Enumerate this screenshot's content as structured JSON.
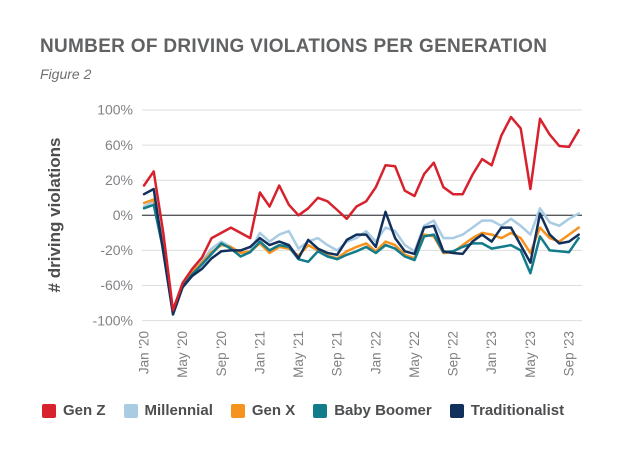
{
  "header": {
    "title": "NUMBER OF DRIVING VIOLATIONS PER GENERATION",
    "figure_label": "Figure 2"
  },
  "chart_data": {
    "type": "line",
    "title": "NUMBER OF DRIVING VIOLATIONS PER GENERATION",
    "subtitle": "Figure 2",
    "xlabel": "",
    "ylabel": "# driving violations",
    "unit": "%",
    "grid": "horizontal",
    "legend_position": "bottom",
    "y_scale": "nonlinear-even-tick-spacing",
    "y_tick_labels": [
      "100%",
      "60%",
      "20%",
      "0%",
      "-20%",
      "-60%",
      "-100%"
    ],
    "y_tick_values": [
      100,
      60,
      20,
      0,
      -20,
      -60,
      -100
    ],
    "x_tick_labels": [
      "Jan '20",
      "May '20",
      "Sep '20",
      "Jan '21",
      "May '21",
      "Sep '21",
      "Jan '22",
      "May '22",
      "Sep '22",
      "Jan '23",
      "May '23",
      "Sep '23"
    ],
    "x_tick_month_indices": [
      0,
      4,
      8,
      12,
      16,
      20,
      24,
      28,
      32,
      36,
      40,
      44
    ],
    "x_months": [
      "Jan '20",
      "Feb '20",
      "Mar '20",
      "Apr '20",
      "May '20",
      "Jun '20",
      "Jul '20",
      "Aug '20",
      "Sep '20",
      "Oct '20",
      "Nov '20",
      "Dec '20",
      "Jan '21",
      "Feb '21",
      "Mar '21",
      "Apr '21",
      "May '21",
      "Jun '21",
      "Jul '21",
      "Aug '21",
      "Sep '21",
      "Oct '21",
      "Nov '21",
      "Dec '21",
      "Jan '22",
      "Feb '22",
      "Mar '22",
      "Apr '22",
      "May '22",
      "Jun '22",
      "Jul '22",
      "Aug '22",
      "Sep '22",
      "Oct '22",
      "Nov '22",
      "Dec '22",
      "Jan '23",
      "Feb '23",
      "Mar '23",
      "Apr '23",
      "May '23",
      "Jun '23",
      "Jul '23",
      "Aug '23",
      "Sep '23",
      "Oct '23"
    ],
    "series": [
      {
        "name": "Gen Z",
        "color": "#d7222d",
        "values": [
          17,
          30,
          -10,
          -88,
          -57,
          -41,
          -28,
          -13,
          -10,
          -7,
          -10,
          -13,
          13,
          5,
          17,
          6,
          0,
          4,
          10,
          8,
          3,
          -2,
          5,
          8,
          16,
          37,
          36,
          14,
          11,
          27,
          40,
          16,
          12,
          12,
          26,
          44,
          37,
          71,
          92,
          79,
          15,
          90,
          72,
          59,
          58,
          77
        ]
      },
      {
        "name": "Millennial",
        "color": "#a9cce3",
        "values": [
          5,
          8,
          -15,
          -89,
          -58,
          -44,
          -32,
          -19,
          -15,
          -18,
          -23,
          -21,
          -10,
          -15,
          -11,
          -9,
          -19,
          -15,
          -13,
          -17,
          -20,
          -15,
          -13,
          -9,
          -15,
          -7,
          -9,
          -17,
          -21,
          -6,
          -3,
          -13,
          -13,
          -11,
          -7,
          -3,
          -3,
          -6,
          -2,
          -6,
          -11,
          4,
          -4,
          -6,
          -2,
          1
        ]
      },
      {
        "name": "Gen X",
        "color": "#f6921e",
        "values": [
          7,
          9,
          -18,
          -89,
          -60,
          -45,
          -34,
          -22,
          -17,
          -18,
          -23,
          -21,
          -16,
          -23,
          -18,
          -19,
          -26,
          -17,
          -20,
          -26,
          -29,
          -21,
          -18,
          -16,
          -21,
          -15,
          -17,
          -25,
          -29,
          -11,
          -12,
          -23,
          -22,
          -17,
          -13,
          -10,
          -11,
          -13,
          -10,
          -13,
          -23,
          -7,
          -13,
          -15,
          -11,
          -7
        ]
      },
      {
        "name": "Baby Boomer",
        "color": "#127c8b",
        "values": [
          4,
          6,
          -20,
          -90,
          -61,
          -47,
          -36,
          -24,
          -16,
          -19,
          -27,
          -22,
          -15,
          -20,
          -17,
          -18,
          -30,
          -33,
          -21,
          -27,
          -30,
          -25,
          -21,
          -18,
          -23,
          -17,
          -19,
          -27,
          -31,
          -12,
          -11,
          -22,
          -21,
          -18,
          -16,
          -16,
          -19,
          -18,
          -17,
          -20,
          -46,
          -12,
          -20,
          -21,
          -22,
          -13
        ]
      },
      {
        "name": "Traditionalist",
        "color": "#12305c",
        "values": [
          12,
          15,
          -22,
          -93,
          -62,
          -49,
          -41,
          -29,
          -21,
          -20,
          -20,
          -18,
          -13,
          -17,
          -15,
          -17,
          -29,
          -14,
          -19,
          -23,
          -25,
          -14,
          -11,
          -11,
          -18,
          2,
          -13,
          -21,
          -24,
          -7,
          -6,
          -21,
          -23,
          -24,
          -15,
          -11,
          -15,
          -7,
          -7,
          -17,
          -34,
          1,
          -11,
          -16,
          -15,
          -11
        ]
      }
    ],
    "zero_line_color": "#58595b",
    "grid_color": "#dcdddd"
  },
  "colors": {
    "background": "#ffffff",
    "title_text": "#616264",
    "figure_text": "#6e6f71",
    "tick_text": "#808285",
    "axis_label_text": "#4d4e50",
    "legend_text": "#4d4e50"
  }
}
